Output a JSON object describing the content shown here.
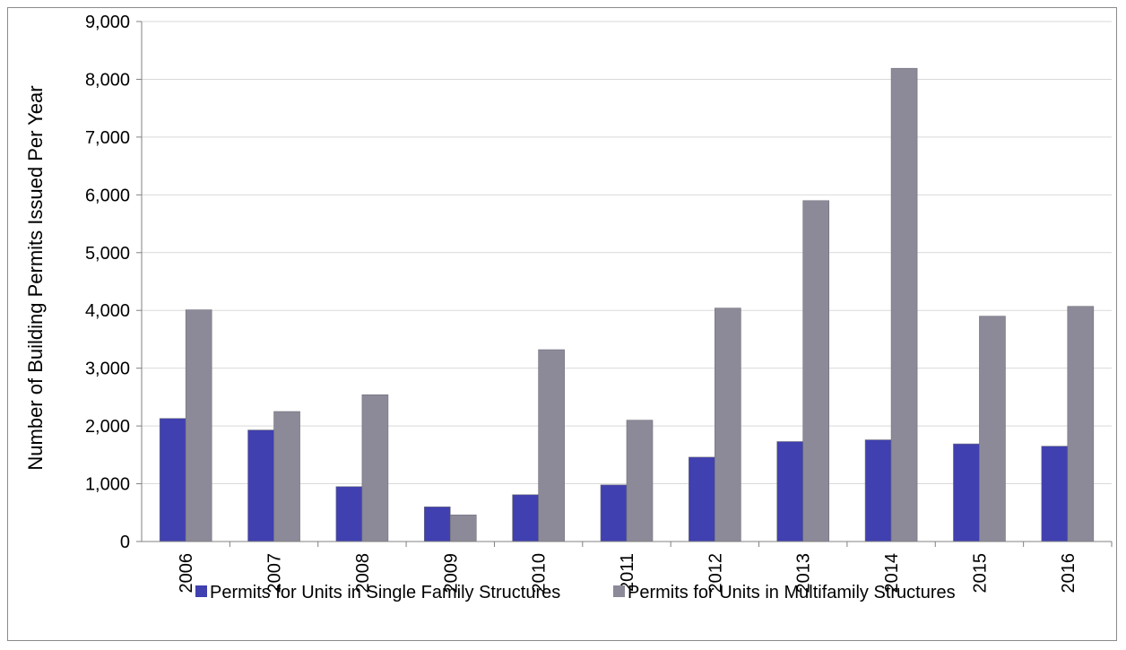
{
  "chart_data": {
    "type": "bar",
    "title": "",
    "xlabel": "",
    "ylabel": "Number of Building Permits Issued Per Year",
    "categories": [
      "2006",
      "2007",
      "2008",
      "2009",
      "2010",
      "2011",
      "2012",
      "2013",
      "2014",
      "2015",
      "2016"
    ],
    "series": [
      {
        "name": "Permits for Units in Single Family Structures",
        "color": "#4040b0",
        "values": [
          2130,
          1930,
          950,
          600,
          810,
          980,
          1460,
          1730,
          1760,
          1690,
          1650
        ]
      },
      {
        "name": "Permits for Units in Multifamily Structures",
        "color": "#8c8a98",
        "values": [
          4010,
          2250,
          2540,
          460,
          3320,
          2100,
          4040,
          5900,
          8190,
          3900,
          4070
        ]
      }
    ],
    "ylim": [
      0,
      9000
    ],
    "yticks": [
      0,
      1000,
      2000,
      3000,
      4000,
      5000,
      6000,
      7000,
      8000,
      9000
    ],
    "ytick_labels": [
      "0",
      "1,000",
      "2,000",
      "3,000",
      "4,000",
      "5,000",
      "6,000",
      "7,000",
      "8,000",
      "9,000"
    ],
    "grid": true,
    "legend_position": "bottom"
  }
}
